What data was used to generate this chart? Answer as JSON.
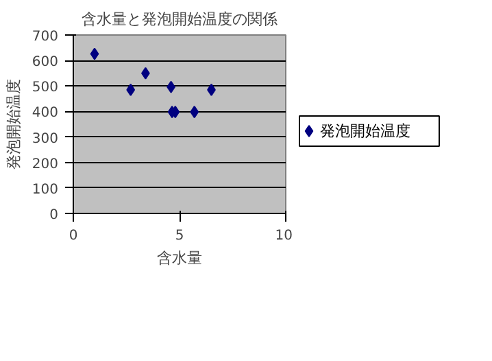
{
  "chart_data": {
    "type": "scatter",
    "title": "含水量と発泡開始温度の関係",
    "xlabel": "含水量",
    "ylabel": "発泡開始温度",
    "x": [
      1.0,
      2.7,
      3.4,
      4.6,
      4.65,
      4.8,
      5.7,
      6.5
    ],
    "series": [
      {
        "name": "発泡開始温度",
        "color": "#000080",
        "values": [
          626,
          485,
          550,
          496,
          398,
          398,
          398,
          485
        ]
      }
    ],
    "xlim": [
      0,
      10
    ],
    "xticks": [
      0,
      5,
      10
    ],
    "ylim": [
      0,
      700
    ],
    "yticks": [
      0,
      100,
      200,
      300,
      400,
      500,
      600,
      700
    ],
    "grid": "y",
    "legend": "right",
    "marker": "diamond"
  }
}
